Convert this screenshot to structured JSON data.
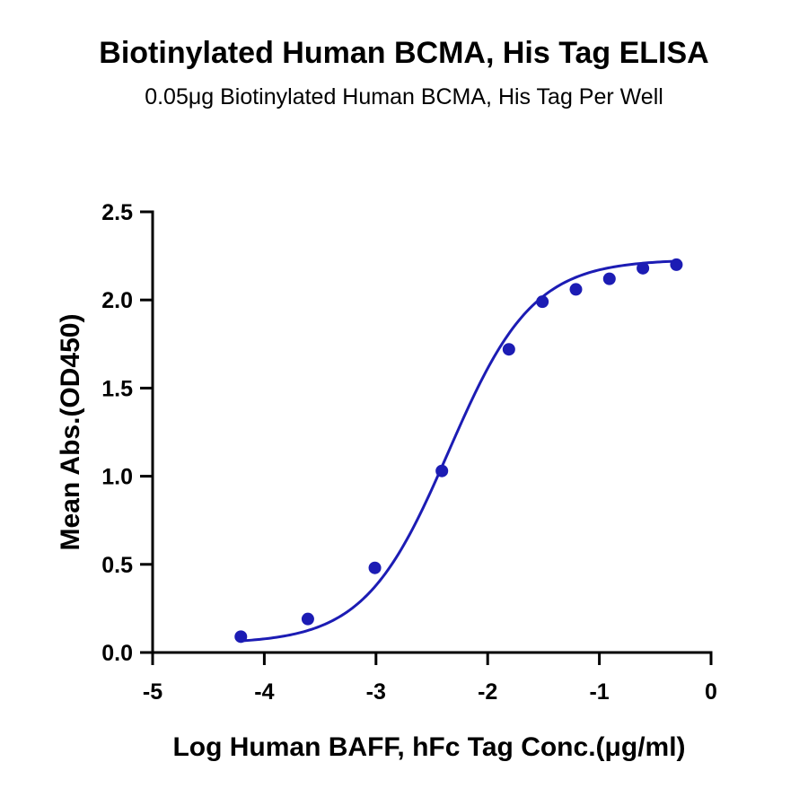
{
  "chart_data": {
    "type": "scatter",
    "title": "Biotinylated Human BCMA, His Tag ELISA",
    "subtitle": "0.05μg Biotinylated Human BCMA, His Tag Per Well",
    "xlabel": "Log Human BAFF, hFc Tag Conc.(μg/ml)",
    "ylabel": "Mean Abs.(OD450)",
    "xlim": [
      -5,
      0
    ],
    "ylim": [
      0,
      2.5
    ],
    "xticks": [
      -5,
      -4,
      -3,
      -2,
      -1,
      0
    ],
    "yticks": [
      0,
      0.5,
      1.0,
      1.5,
      2.0,
      2.5
    ],
    "xtick_labels": [
      "-5",
      "-4",
      "-3",
      "-2",
      "-1",
      "0"
    ],
    "ytick_labels": [
      "0.0",
      "0.5",
      "1.0",
      "1.5",
      "2.0",
      "2.5"
    ],
    "grid": false,
    "series": [
      {
        "color": "#1c1cb4",
        "x": [
          -4.21,
          -3.61,
          -3.01,
          -2.41,
          -1.81,
          -1.51,
          -1.21,
          -0.91,
          -0.61,
          -0.31
        ],
        "y": [
          0.09,
          0.19,
          0.48,
          1.03,
          1.72,
          1.99,
          2.06,
          2.12,
          2.18,
          2.2
        ],
        "fit_curve": {
          "model": "4PL",
          "bottom": 0.05,
          "top": 2.23,
          "logEC50": -2.35,
          "hill": 1.15
        }
      }
    ]
  }
}
